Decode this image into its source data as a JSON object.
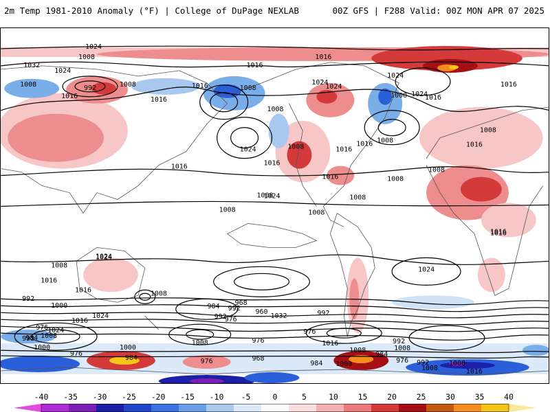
{
  "header": {
    "left": "2m Temp 1981-2010 Anomaly (°F) | College of DuPage NEXLAB",
    "right": "00Z GFS | F288 Valid: 00Z MON APR 07 2025"
  },
  "colors": {
    "land_outline": "#555555",
    "isobar": "#000000",
    "warm_light": "#f7c6c6",
    "warm_mid": "#ee8d8d",
    "warm_strong": "#d43a3a",
    "warm_dark": "#a50f15",
    "orange": "#f58c1e",
    "yellow": "#f5c518",
    "cool_light": "#cfe3f7",
    "cool_mid": "#7aaee8",
    "cool_strong": "#2b5fd9",
    "cool_dark": "#1c1fa8",
    "purple": "#7b1fb5"
  },
  "colorbar": {
    "ticks": [
      "-40",
      "-35",
      "-30",
      "-25",
      "-20",
      "-15",
      "-10",
      "-5",
      "0",
      "5",
      "10",
      "15",
      "20",
      "25",
      "30",
      "35",
      "40"
    ],
    "segments": [
      "#e04ce0",
      "#b02cd4",
      "#7b1fb5",
      "#1c1fa8",
      "#2146c9",
      "#3b72df",
      "#6b9ce8",
      "#a8c8f0",
      "#dbe9f9",
      "#ffffff",
      "#fbdede",
      "#f5b1b1",
      "#ec7a7a",
      "#d43a3a",
      "#a50f15",
      "#c45a10",
      "#f58c1e",
      "#f5c518",
      "#fbe79a"
    ]
  },
  "isobar_labels": [
    "1024",
    "1032",
    "1024",
    "1016",
    "1008",
    "1008",
    "992",
    "1008",
    "1016",
    "1016",
    "1008",
    "1008",
    "1024",
    "1024",
    "1016",
    "1016",
    "1024",
    "1024",
    "1000",
    "1016",
    "1008",
    "1016",
    "1024",
    "1008",
    "1016",
    "1016",
    "1008",
    "1016",
    "1016",
    "1008",
    "1008",
    "1024",
    "1008",
    "1008",
    "1008",
    "1008",
    "1016",
    "1016",
    "1016",
    "1024",
    "1016",
    "1024",
    "1008",
    "1024",
    "1016",
    "1016",
    "992",
    "1000",
    "1008",
    "984",
    "992",
    "968",
    "976",
    "960",
    "992",
    "976",
    "1032",
    "1024",
    "1016",
    "976",
    "1008",
    "984",
    "1024",
    "992",
    "1000",
    "976",
    "984",
    "1000",
    "1008",
    "976",
    "992",
    "968",
    "976",
    "1016",
    "1008",
    "984",
    "1000",
    "992",
    "984",
    "1008",
    "976",
    "992",
    "1000",
    "1008",
    "1016"
  ]
}
